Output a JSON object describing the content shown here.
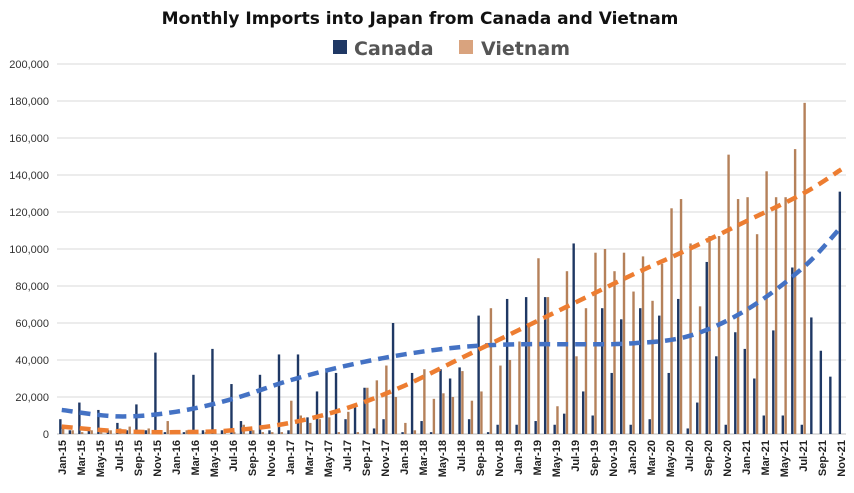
{
  "chart_data": {
    "type": "bar",
    "title": "Monthly Imports into Japan from Canada and Vietnam",
    "xlabel": "",
    "ylabel": "",
    "ylim": [
      0,
      200000
    ],
    "yticks": [
      0,
      20000,
      40000,
      60000,
      80000,
      100000,
      120000,
      140000,
      160000,
      180000,
      200000
    ],
    "ytick_labels": [
      "0",
      "20,000",
      "40,000",
      "60,000",
      "80,000",
      "100,000",
      "120,000",
      "140,000",
      "160,000",
      "180,000",
      "200,000"
    ],
    "grid": true,
    "legend_position": "top-center",
    "x_tick_labels": [
      "Jan-15",
      "Mar-15",
      "May-15",
      "Jul-15",
      "Sep-15",
      "Nov-15",
      "Jan-16",
      "Mar-16",
      "May-16",
      "Jul-16",
      "Sep-16",
      "Nov-16",
      "Jan-17",
      "Mar-17",
      "May-17",
      "Jul-17",
      "Sep-17",
      "Nov-17",
      "Jan-18",
      "Mar-18",
      "May-18",
      "Jul-18",
      "Sep-18",
      "Nov-18",
      "Jan-19",
      "Mar-19",
      "May-19",
      "Jul-19",
      "Sep-19",
      "Nov-19",
      "Jan-20",
      "Mar-20",
      "May-20",
      "Jul-20",
      "Sep-20",
      "Nov-20",
      "Jan-21",
      "Mar-21",
      "May-21",
      "Jul-21",
      "Sep-21",
      "Nov-21"
    ],
    "categories": [
      "Jan-15",
      "Feb-15",
      "Mar-15",
      "Apr-15",
      "May-15",
      "Jun-15",
      "Jul-15",
      "Aug-15",
      "Sep-15",
      "Oct-15",
      "Nov-15",
      "Dec-15",
      "Jan-16",
      "Feb-16",
      "Mar-16",
      "Apr-16",
      "May-16",
      "Jun-16",
      "Jul-16",
      "Aug-16",
      "Sep-16",
      "Oct-16",
      "Nov-16",
      "Dec-16",
      "Jan-17",
      "Feb-17",
      "Mar-17",
      "Apr-17",
      "May-17",
      "Jun-17",
      "Jul-17",
      "Aug-17",
      "Sep-17",
      "Oct-17",
      "Nov-17",
      "Dec-17",
      "Jan-18",
      "Feb-18",
      "Mar-18",
      "Apr-18",
      "May-18",
      "Jun-18",
      "Jul-18",
      "Aug-18",
      "Sep-18",
      "Oct-18",
      "Nov-18",
      "Dec-18",
      "Jan-19",
      "Feb-19",
      "Mar-19",
      "Apr-19",
      "May-19",
      "Jun-19",
      "Jul-19",
      "Aug-19",
      "Sep-19",
      "Oct-19",
      "Nov-19",
      "Dec-19",
      "Jan-20",
      "Feb-20",
      "Mar-20",
      "Apr-20",
      "May-20",
      "Jun-20",
      "Jul-20",
      "Aug-20",
      "Sep-20",
      "Oct-20",
      "Nov-20",
      "Dec-20",
      "Jan-21",
      "Feb-21",
      "Mar-21",
      "Apr-21",
      "May-21",
      "Jun-21",
      "Jul-21",
      "Aug-21",
      "Sep-21",
      "Oct-21",
      "Nov-21"
    ],
    "series": [
      {
        "name": "Canada",
        "color": "#1f3864",
        "values": [
          8000,
          2000,
          17000,
          3000,
          13000,
          2000,
          6000,
          2000,
          16000,
          2000,
          44000,
          1000,
          2000,
          1000,
          32000,
          2000,
          46000,
          2000,
          27000,
          7000,
          2000,
          32000,
          2000,
          43000,
          2000,
          43000,
          9000,
          23000,
          35000,
          33000,
          8000,
          15000,
          25000,
          3000,
          8000,
          60000,
          1000,
          33000,
          7000,
          1000,
          35000,
          30000,
          36000,
          8000,
          64000,
          1000,
          5000,
          73000,
          5000,
          74000,
          7000,
          74000,
          5000,
          11000,
          103000,
          23000,
          10000,
          68000,
          33000,
          62000,
          5000,
          68000,
          8000,
          64000,
          33000,
          73000,
          3000,
          17000,
          93000,
          42000,
          5000,
          55000,
          46000,
          30000,
          10000,
          56000,
          10000,
          90000,
          5000,
          63000,
          45000,
          31000,
          131000
        ]
      },
      {
        "name": "Vietnam",
        "color": "#b5815a",
        "values": [
          5000,
          2000,
          1000,
          2000,
          1000,
          2000,
          3000,
          4000,
          2000,
          3000,
          1000,
          7000,
          1000,
          2000,
          1000,
          1000,
          1000,
          1000,
          1000,
          5000,
          2000,
          1000,
          1000,
          1000,
          18000,
          10000,
          6000,
          8000,
          9000,
          1000,
          12000,
          1000,
          25000,
          29000,
          37000,
          20000,
          6000,
          2000,
          35000,
          19000,
          22000,
          20000,
          34000,
          18000,
          23000,
          68000,
          37000,
          40000,
          50000,
          60000,
          95000,
          74000,
          15000,
          88000,
          42000,
          68000,
          98000,
          100000,
          88000,
          98000,
          77000,
          96000,
          72000,
          92000,
          122000,
          127000,
          103000,
          69000,
          107000,
          107000,
          151000,
          127000,
          128000,
          108000,
          142000,
          128000,
          128000,
          154000,
          179000,
          0,
          0,
          0,
          0
        ]
      }
    ],
    "trendlines": [
      {
        "series": "Canada",
        "style": "dashed polynomial",
        "color": "#4472c4",
        "points": [
          [
            0,
            13000
          ],
          [
            6,
            9500
          ],
          [
            12,
            12000
          ],
          [
            18,
            19000
          ],
          [
            24,
            29000
          ],
          [
            30,
            37000
          ],
          [
            36,
            43000
          ],
          [
            42,
            47000
          ],
          [
            48,
            48500
          ],
          [
            54,
            48500
          ],
          [
            60,
            49000
          ],
          [
            66,
            53000
          ],
          [
            72,
            67000
          ],
          [
            78,
            90000
          ],
          [
            82,
            112000
          ]
        ]
      },
      {
        "series": "Vietnam",
        "style": "dashed polynomial",
        "color": "#ed7d31",
        "points": [
          [
            0,
            4000
          ],
          [
            6,
            1500
          ],
          [
            12,
            1000
          ],
          [
            18,
            2000
          ],
          [
            24,
            6000
          ],
          [
            30,
            14000
          ],
          [
            36,
            26000
          ],
          [
            42,
            41000
          ],
          [
            48,
            56000
          ],
          [
            54,
            71000
          ],
          [
            60,
            86000
          ],
          [
            66,
            100000
          ],
          [
            72,
            115000
          ],
          [
            78,
            130000
          ],
          [
            82,
            143000
          ]
        ]
      }
    ]
  }
}
